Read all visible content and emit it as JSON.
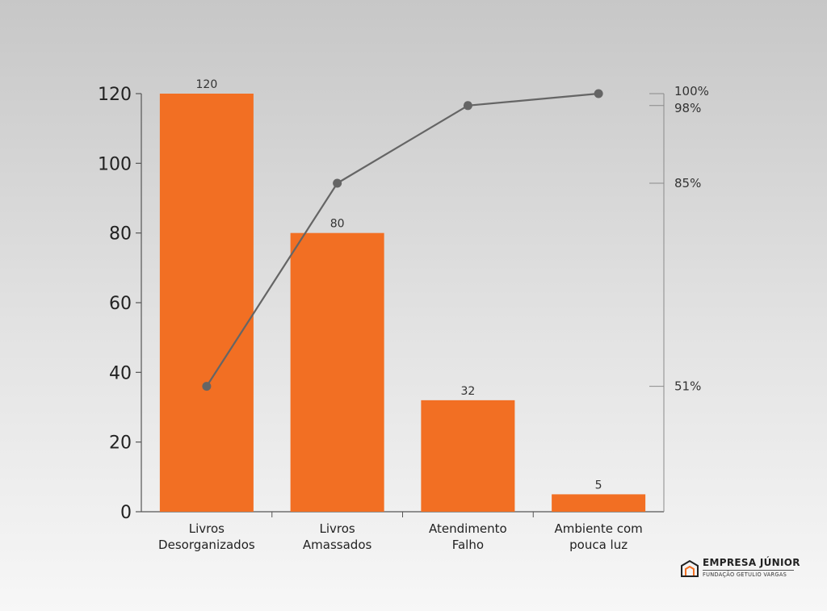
{
  "chart_data": {
    "type": "bar",
    "categories": [
      [
        "Livros",
        "Desorganizados"
      ],
      [
        "Livros",
        "Amassados"
      ],
      [
        "Atendimento",
        "Falho"
      ],
      [
        "Ambiente com",
        "pouca luz"
      ]
    ],
    "series": [
      {
        "type": "bar",
        "values": [
          120,
          80,
          32,
          5
        ],
        "data_labels": [
          "120",
          "80",
          "32",
          "5"
        ]
      },
      {
        "type": "line",
        "axis": "right",
        "values": [
          51,
          85,
          98,
          100
        ]
      }
    ],
    "y_left": {
      "ticks": [
        "0",
        "20",
        "40",
        "60",
        "80",
        "100",
        "120"
      ],
      "range": [
        0,
        120
      ]
    },
    "y_right": {
      "tick_values": [
        51,
        85,
        98,
        100
      ],
      "tick_labels": [
        "51%",
        "85%",
        "98%",
        "100%"
      ],
      "range": [
        30,
        100
      ]
    },
    "colors": {
      "bar": "#f26f23",
      "line": "#656565",
      "axis": "#555555"
    }
  },
  "logo": {
    "title": "EMPRESA JÚNIOR",
    "subtitle": "FUNDAÇÃO GETULIO VARGAS",
    "icon": "building-icon"
  }
}
